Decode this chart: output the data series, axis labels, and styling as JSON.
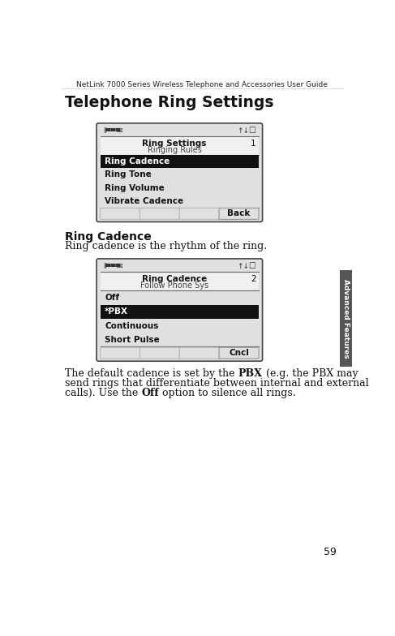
{
  "page_title": "NetLink 7000 Series Wireless Telephone and Accessories User Guide",
  "page_number": "59",
  "section_tab": "Advanced Features",
  "heading1": "Telephone Ring Settings",
  "screen1": {
    "title_bold": "Ring Settings",
    "title_num": "1",
    "subtitle": "Ringing Rules",
    "menu_items": [
      "Ring Cadence",
      "Ring Tone",
      "Ring Volume",
      "Vibrate Cadence"
    ],
    "selected_index": 0,
    "softkeys": [
      "",
      "",
      "",
      "Back"
    ]
  },
  "heading2": "Ring Cadence",
  "body_text": "Ring cadence is the rhythm of the ring.",
  "screen2": {
    "title_bold": "Ring Cadence",
    "title_num": "2",
    "subtitle": "Follow Phone Sys",
    "menu_items": [
      "Off",
      "*PBX",
      "Continuous",
      "Short Pulse"
    ],
    "selected_index": 1,
    "softkeys": [
      "",
      "",
      "",
      "Cncl"
    ]
  },
  "body_text2_lines": [
    [
      [
        "The default cadence is set by the ",
        false
      ],
      [
        "PBX",
        true
      ],
      [
        " (e.g. the PBX may",
        false
      ]
    ],
    [
      [
        "send rings that differentiate between internal and external",
        false
      ]
    ],
    [
      [
        "calls). Use the ",
        false
      ],
      [
        "Off",
        true
      ],
      [
        " option to silence all rings.",
        false
      ]
    ]
  ],
  "bg_color": "#ffffff",
  "screen_bg": "#e0e0e0",
  "screen_border": "#444444",
  "selected_bg": "#111111",
  "selected_fg": "#ffffff",
  "sep_color": "#666666",
  "tab_color": "#555555",
  "tab_text": "#ffffff",
  "text_color": "#111111"
}
